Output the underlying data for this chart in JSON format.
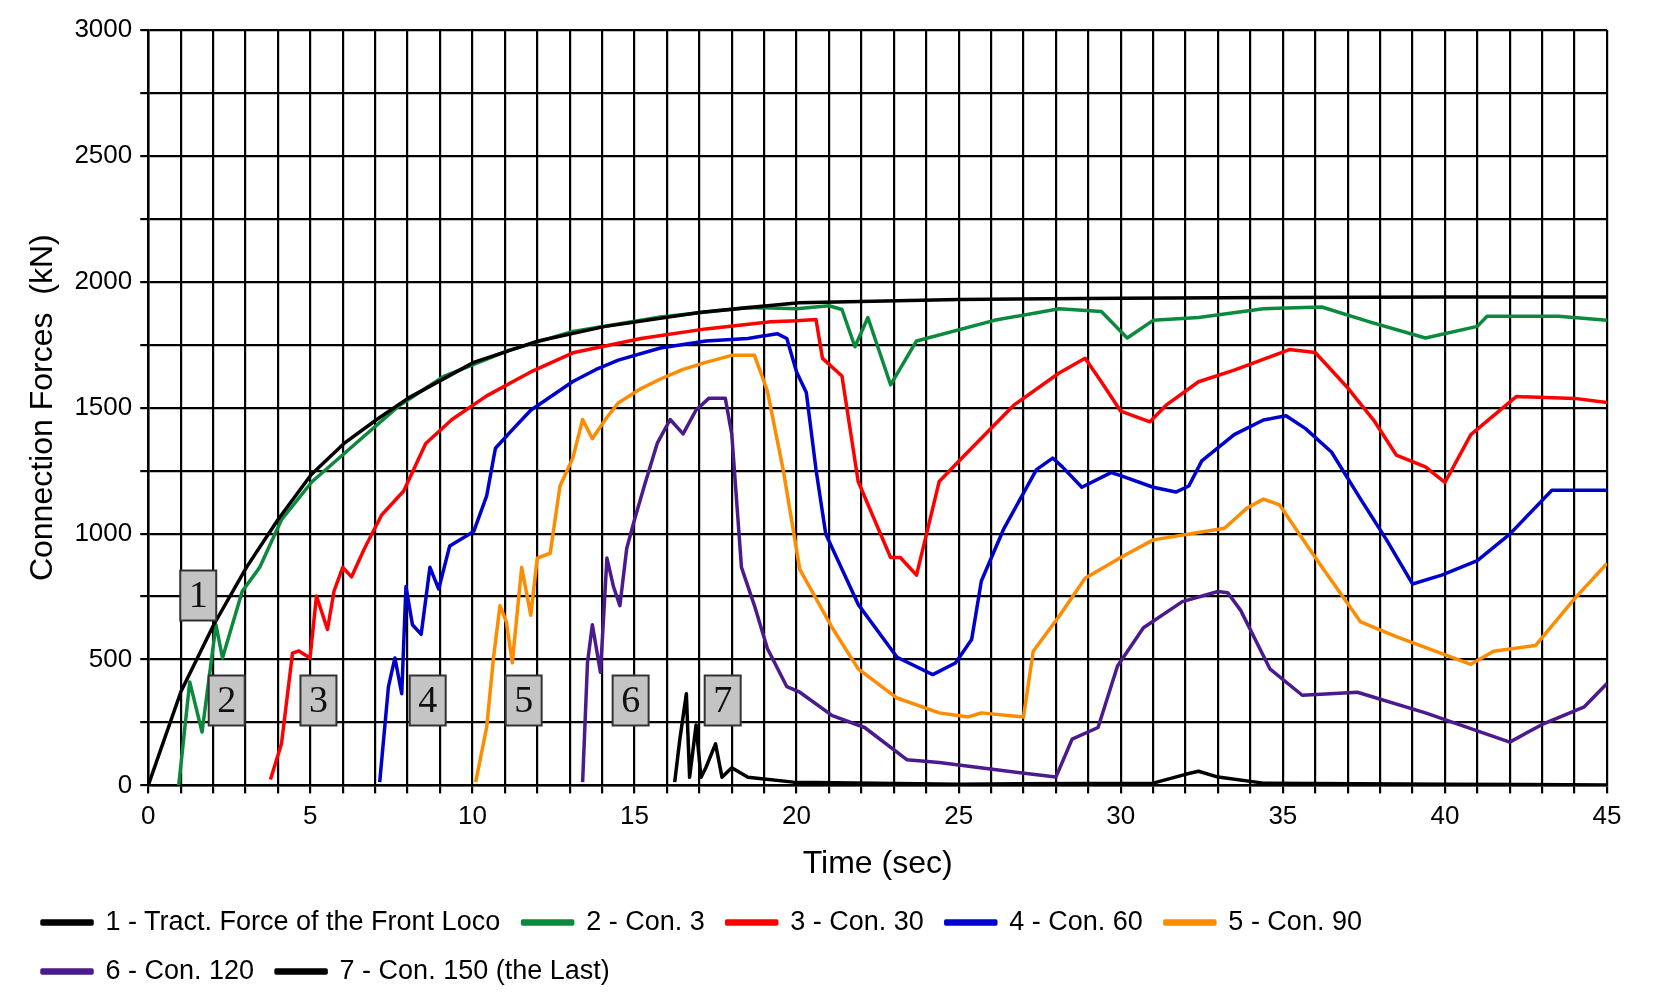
{
  "chart_data": {
    "type": "line",
    "xlabel": "Time (sec)",
    "ylabel": "Connection Forces  (kN)",
    "xlim": [
      0,
      45
    ],
    "ylim": [
      0,
      3000
    ],
    "xticks": [
      0,
      {
        "value": 1,
        "label": null
      },
      {
        "value": 2,
        "label": null
      },
      {
        "value": 3,
        "label": null
      },
      {
        "value": 4,
        "label": null
      },
      5,
      {
        "value": 6,
        "label": null
      },
      {
        "value": 7,
        "label": null
      },
      {
        "value": 8,
        "label": null
      },
      {
        "value": 9,
        "label": null
      },
      10,
      {
        "value": 11,
        "label": null
      },
      {
        "value": 12,
        "label": null
      },
      {
        "value": 13,
        "label": null
      },
      {
        "value": 14,
        "label": null
      },
      15,
      {
        "value": 16,
        "label": null
      },
      {
        "value": 17,
        "label": null
      },
      {
        "value": 18,
        "label": null
      },
      {
        "value": 19,
        "label": null
      },
      20,
      {
        "value": 21,
        "label": null
      },
      {
        "value": 22,
        "label": null
      },
      {
        "value": 23,
        "label": null
      },
      {
        "value": 24,
        "label": null
      },
      25,
      {
        "value": 26,
        "label": null
      },
      {
        "value": 27,
        "label": null
      },
      {
        "value": 28,
        "label": null
      },
      {
        "value": 29,
        "label": null
      },
      30,
      {
        "value": 31,
        "label": null
      },
      {
        "value": 32,
        "label": null
      },
      {
        "value": 33,
        "label": null
      },
      {
        "value": 34,
        "label": null
      },
      35,
      {
        "value": 36,
        "label": null
      },
      {
        "value": 37,
        "label": null
      },
      {
        "value": 38,
        "label": null
      },
      {
        "value": 39,
        "label": null
      },
      40,
      {
        "value": 41,
        "label": null
      },
      {
        "value": 42,
        "label": null
      },
      {
        "value": 43,
        "label": null
      },
      {
        "value": 44,
        "label": null
      },
      45
    ],
    "yticks": [
      0,
      {
        "value": 250,
        "label": null
      },
      500,
      {
        "value": 750,
        "label": null
      },
      1000,
      {
        "value": 1250,
        "label": null
      },
      1500,
      {
        "value": 1750,
        "label": null
      },
      2000,
      {
        "value": 2250,
        "label": null
      },
      2500,
      {
        "value": 2750,
        "label": null
      },
      3000
    ],
    "grid": true,
    "legend": "bottom",
    "marker": "none",
    "line_style": "solid",
    "annotations": [
      "1",
      "2",
      "3",
      "4",
      "5",
      "6",
      "7"
    ],
    "series": [
      {
        "name": "1 - Tract. Force of the Front Loco",
        "color": "#000000",
        "x": [
          0,
          1.01,
          2.02,
          3.03,
          4.0,
          5.03,
          6.04,
          7.05,
          8.02,
          10.04,
          12.03,
          14.06,
          17.05,
          20.08,
          25,
          30,
          35,
          40,
          45
        ],
        "values": [
          0,
          373,
          638,
          866,
          1055,
          1235,
          1358,
          1453,
          1538,
          1680,
          1765,
          1822,
          1879,
          1917,
          1930,
          1935,
          1938,
          1940,
          1940
        ]
      },
      {
        "name": "2 - Con. 3",
        "color": "#0b8a3e",
        "x": [
          0.94,
          1.28,
          1.66,
          2.09,
          2.29,
          2.9,
          3.44,
          4.11,
          5.05,
          6.4,
          7.75,
          9.1,
          11.1,
          13.1,
          15.8,
          18.5,
          20.0,
          21.0,
          21.4,
          21.8,
          22.2,
          22.9,
          23.7,
          26.1,
          28.1,
          29.4,
          30.2,
          31.0,
          32.4,
          34.4,
          36.2,
          37.7,
          39.4,
          41.0,
          41.3,
          43.5,
          45
        ],
        "values": [
          0,
          411,
          212,
          638,
          506,
          771,
          866,
          1055,
          1206,
          1358,
          1509,
          1623,
          1727,
          1803,
          1860,
          1898,
          1893,
          1905,
          1890,
          1742,
          1858,
          1591,
          1765,
          1847,
          1893,
          1882,
          1777,
          1847,
          1858,
          1893,
          1900,
          1840,
          1777,
          1823,
          1863,
          1863,
          1847
        ]
      },
      {
        "name": "3 - Con. 30",
        "color": "#ff0000",
        "x": [
          3.77,
          4.11,
          4.45,
          4.65,
          4.99,
          5.19,
          5.53,
          5.73,
          6.0,
          6.27,
          6.67,
          7.2,
          7.88,
          8.56,
          9.37,
          10.44,
          11.8,
          13.1,
          15.2,
          17.2,
          19.2,
          20.0,
          20.6,
          20.8,
          21.4,
          21.9,
          22.9,
          23.2,
          23.7,
          24.4,
          25.1,
          26.7,
          28.1,
          28.9,
          29.4,
          30.0,
          30.9,
          31.4,
          32.4,
          33.5,
          35.2,
          36.0,
          37.0,
          37.8,
          38.5,
          39.4,
          40.0,
          40.8,
          42.2,
          44.0,
          45
        ],
        "values": [
          23,
          165,
          525,
          534,
          506,
          752,
          619,
          771,
          866,
          828,
          941,
          1074,
          1169,
          1358,
          1453,
          1547,
          1642,
          1718,
          1775,
          1813,
          1841,
          1845,
          1850,
          1696,
          1626,
          1207,
          905,
          905,
          835,
          1207,
          1300,
          1510,
          1638,
          1696,
          1603,
          1486,
          1444,
          1510,
          1603,
          1649,
          1731,
          1719,
          1579,
          1451,
          1312,
          1265,
          1203,
          1393,
          1544,
          1537,
          1521
        ]
      },
      {
        "name": "4 - Con. 60",
        "color": "#0000cc",
        "x": [
          7.14,
          7.41,
          7.61,
          7.82,
          7.95,
          8.15,
          8.42,
          8.69,
          8.96,
          9.3,
          10.04,
          10.44,
          10.71,
          11.25,
          11.8,
          13.1,
          13.8,
          14.5,
          15.8,
          17.2,
          18.5,
          19.4,
          19.7,
          20.0,
          20.3,
          20.6,
          20.9,
          21.9,
          23.1,
          24.2,
          24.9,
          25.4,
          25.7,
          26.4,
          27.4,
          27.9,
          28.2,
          28.8,
          29.7,
          30.0,
          31.0,
          31.7,
          32.1,
          32.5,
          33.5,
          34.4,
          35.1,
          35.7,
          36.5,
          37.4,
          38.2,
          39.0,
          39.9,
          41.0,
          42.0,
          43.3,
          45
        ],
        "values": [
          13,
          392,
          506,
          364,
          790,
          638,
          600,
          866,
          780,
          951,
          1008,
          1150,
          1339,
          1415,
          1490,
          1604,
          1651,
          1689,
          1737,
          1765,
          1775,
          1794,
          1775,
          1642,
          1560,
          1254,
          998,
          719,
          509,
          440,
          486,
          579,
          812,
          1021,
          1254,
          1300,
          1265,
          1184,
          1242,
          1230,
          1184,
          1165,
          1189,
          1289,
          1393,
          1451,
          1468,
          1417,
          1324,
          1137,
          975,
          800,
          835,
          893,
          998,
          1172,
          1172
        ]
      },
      {
        "name": "5 - Con. 90",
        "color": "#ff8c00",
        "x": [
          10.1,
          10.44,
          10.65,
          10.85,
          11.05,
          11.23,
          11.52,
          11.8,
          12.0,
          12.4,
          12.7,
          13.1,
          13.4,
          13.7,
          14.1,
          14.5,
          15.2,
          15.8,
          16.5,
          17.2,
          18.0,
          18.7,
          19.1,
          19.6,
          20.1,
          21.1,
          21.9,
          23.1,
          24.4,
          25.3,
          25.7,
          27.0,
          27.3,
          28.1,
          28.9,
          30.0,
          31.0,
          33.2,
          33.9,
          34.4,
          34.9,
          36.0,
          37.4,
          38.5,
          40.8,
          41.5,
          42.8,
          44.0,
          45
        ],
        "values": [
          13,
          231,
          506,
          714,
          648,
          487,
          866,
          676,
          903,
          922,
          1188,
          1301,
          1453,
          1377,
          1453,
          1519,
          1576,
          1614,
          1652,
          1680,
          1708,
          1708,
          1566,
          1244,
          858,
          626,
          463,
          347,
          288,
          272,
          288,
          272,
          533,
          672,
          823,
          905,
          975,
          1021,
          1102,
          1137,
          1114,
          905,
          649,
          591,
          481,
          533,
          556,
          742,
          882
        ]
      },
      {
        "name": "6 - Con. 120",
        "color": "#4b1a8c",
        "x": [
          13.4,
          13.55,
          13.7,
          13.95,
          14.15,
          14.35,
          14.55,
          14.76,
          15.0,
          15.3,
          15.7,
          16.1,
          16.5,
          16.9,
          17.3,
          17.8,
          18.0,
          18.3,
          18.7,
          19.1,
          19.7,
          20.1,
          21.1,
          22.1,
          23.4,
          24.4,
          26.1,
          28.0,
          28.5,
          29.3,
          29.9,
          30.7,
          31.9,
          33.0,
          33.3,
          33.7,
          34.6,
          35.6,
          37.3,
          39.4,
          42.0,
          43.0,
          44.3,
          45
        ],
        "values": [
          13,
          487,
          638,
          449,
          903,
          790,
          714,
          941,
          1055,
          1188,
          1358,
          1453,
          1396,
          1491,
          1538,
          1538,
          1396,
          866,
          714,
          544,
          392,
          370,
          277,
          230,
          102,
          91,
          63,
          33,
          184,
          230,
          474,
          626,
          730,
          770,
          765,
          695,
          463,
          358,
          370,
          288,
          172,
          242,
          312,
          405
        ]
      },
      {
        "name": "7 - Con. 150 (the Last)",
        "color": "#000000",
        "x": [
          16.24,
          16.4,
          16.6,
          16.7,
          16.9,
          17.05,
          17.2,
          17.5,
          17.7,
          18.0,
          18.5,
          19.9,
          25,
          31,
          32,
          32.4,
          33,
          34.4,
          40,
          45
        ],
        "values": [
          13,
          184,
          364,
          32,
          240,
          32,
          70,
          165,
          32,
          70,
          32,
          13,
          5,
          9,
          44,
          56,
          33,
          9,
          5,
          2
        ]
      }
    ]
  }
}
